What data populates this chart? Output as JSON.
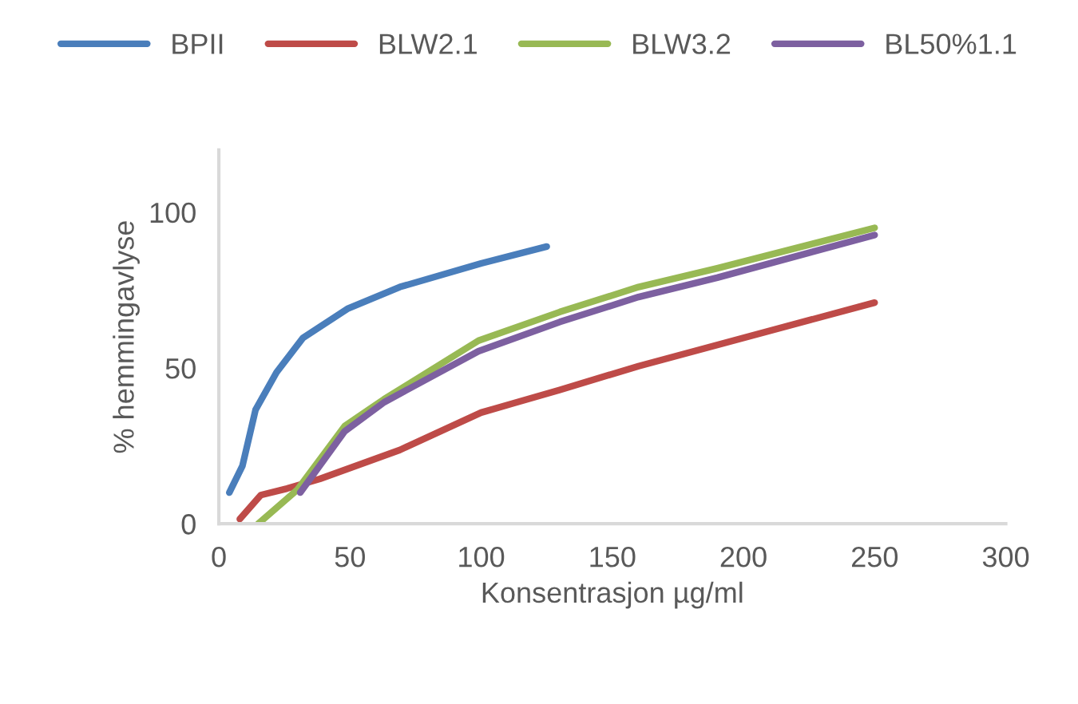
{
  "chart_data": {
    "type": "line",
    "xlabel": "Konsentrasjon µg/ml",
    "ylabel": "% hemmingavlyse",
    "xlim": [
      0,
      300
    ],
    "xticks": [
      0,
      50,
      100,
      150,
      200,
      250,
      300
    ],
    "ylim": [
      0,
      120
    ],
    "yticks": [
      0,
      50,
      100
    ],
    "grid": false,
    "legend": "top",
    "marker": "none",
    "line_style": "solid",
    "series": [
      {
        "name": "BPII",
        "color": "#4a7ebb",
        "x": [
          4,
          9,
          14,
          22,
          32,
          49,
          69,
          100,
          125
        ],
        "values": [
          10,
          18.6,
          36.6,
          48.6,
          59.6,
          69,
          76,
          83.6,
          89
        ]
      },
      {
        "name": "BLW2.1",
        "color": "#be4b48",
        "x": [
          8,
          16,
          26,
          38.5,
          69,
          100,
          130,
          160,
          250
        ],
        "values": [
          1.5,
          9.2,
          11.3,
          14.4,
          23.7,
          35.7,
          43,
          50.6,
          71
        ]
      },
      {
        "name": "BLW3.2",
        "color": "#98b954",
        "x": [
          15,
          30,
          48,
          63,
          99,
          130,
          160,
          190,
          250
        ],
        "values": [
          0,
          11,
          31.4,
          40,
          58.8,
          68,
          76,
          82,
          95
        ]
      },
      {
        "name": "BL50%1.1",
        "color": "#7d60a0",
        "x": [
          31,
          48,
          63,
          99,
          130,
          160,
          190,
          250
        ],
        "values": [
          10,
          29.7,
          39,
          55.4,
          64.8,
          72.8,
          79,
          92.7
        ]
      }
    ]
  }
}
